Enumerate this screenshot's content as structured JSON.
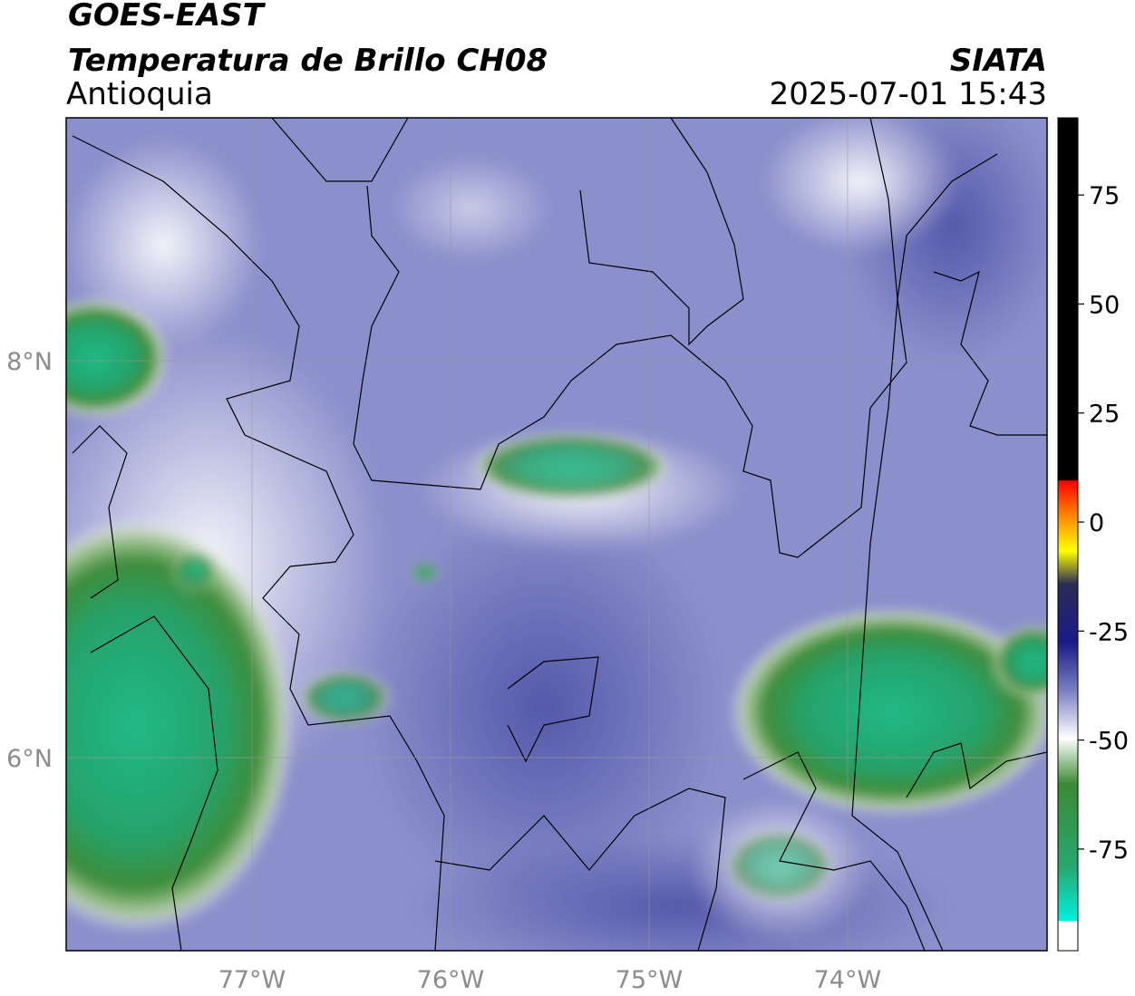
{
  "header": {
    "satellite": "GOES-EAST",
    "product": "Temperatura de Brillo CH08",
    "region": "Antioquia",
    "source": "SIATA",
    "datetime": "2025-07-01 15:43"
  },
  "map": {
    "lonlim": [
      -77.936,
      -72.995
    ],
    "latlim": [
      5.027,
      9.224
    ],
    "xticks": [
      {
        "value": -77,
        "label": "77°W"
      },
      {
        "value": -76,
        "label": "76°W"
      },
      {
        "value": -75,
        "label": "75°W"
      },
      {
        "value": -74,
        "label": "74°W"
      }
    ],
    "yticks": [
      {
        "value": 8,
        "label": "8°N"
      },
      {
        "value": 6,
        "label": "6°N"
      }
    ]
  },
  "colorbar": {
    "lim": [
      -98.3,
      92.7
    ],
    "ticks": [
      75,
      50,
      25,
      0,
      -25,
      -50,
      -75
    ]
  }
}
